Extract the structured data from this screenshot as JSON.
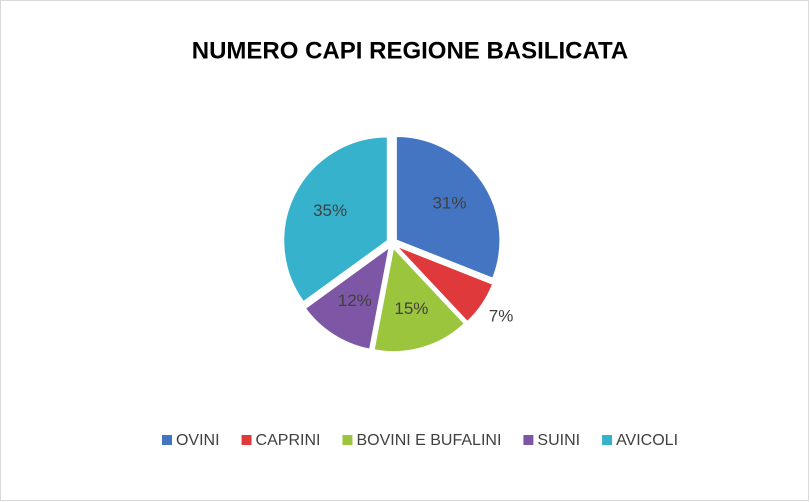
{
  "chart_data": {
    "type": "pie",
    "title": "NUMERO CAPI REGIONE BASILICATA",
    "categories": [
      "OVINI",
      "CAPRINI",
      "BOVINI E BUFALINI",
      "SUINI",
      "AVICOLI"
    ],
    "values": [
      31,
      7,
      15,
      12,
      35
    ],
    "value_labels": [
      "31%",
      "7%",
      "15%",
      "12%",
      "35%"
    ],
    "colors": [
      "#4375c2",
      "#e0393b",
      "#9cc53e",
      "#7d57a6",
      "#36b2cc"
    ],
    "legend": "bottom"
  }
}
